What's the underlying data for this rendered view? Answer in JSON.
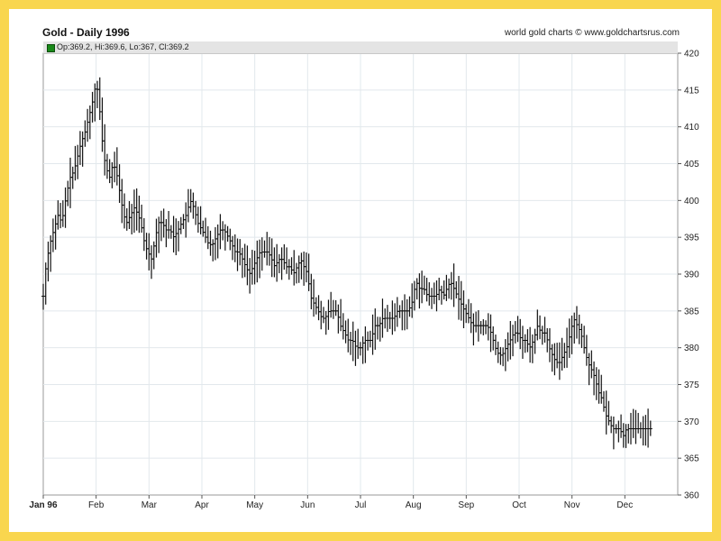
{
  "title": "Gold - Daily 1996",
  "source": "world gold charts © www.goldchartsrus.com",
  "ohlc_readout": "Op:369.2, Hi:369.6, Lo:367, Cl:369.2",
  "colors": {
    "frame": "#f9d64e",
    "bars": "#111111",
    "grid": "#e2e8ec",
    "swatch": "#1a8a1a"
  },
  "chart_data": {
    "type": "ohlc",
    "title": "Gold - Daily 1996",
    "ylim": [
      360,
      420
    ],
    "y_ticks": [
      360,
      365,
      370,
      375,
      380,
      385,
      390,
      395,
      400,
      405,
      410,
      415,
      420
    ],
    "x_range": [
      0,
      12
    ],
    "x_ticks": [
      {
        "label": "Jan 96",
        "x": 0
      },
      {
        "label": "Feb",
        "x": 1
      },
      {
        "label": "Mar",
        "x": 2
      },
      {
        "label": "Apr",
        "x": 3
      },
      {
        "label": "May",
        "x": 4
      },
      {
        "label": "Jun",
        "x": 5
      },
      {
        "label": "Jul",
        "x": 6
      },
      {
        "label": "Aug",
        "x": 7
      },
      {
        "label": "Sep",
        "x": 8
      },
      {
        "label": "Oct",
        "x": 9
      },
      {
        "label": "Nov",
        "x": 10
      },
      {
        "label": "Dec",
        "x": 11
      }
    ],
    "grid": true,
    "close_path": [
      [
        0.0,
        387
      ],
      [
        0.05,
        391
      ],
      [
        0.12,
        394
      ],
      [
        0.2,
        396
      ],
      [
        0.28,
        398
      ],
      [
        0.35,
        397
      ],
      [
        0.42,
        400
      ],
      [
        0.5,
        403
      ],
      [
        0.58,
        404
      ],
      [
        0.65,
        406
      ],
      [
        0.72,
        408
      ],
      [
        0.78,
        409
      ],
      [
        0.85,
        411
      ],
      [
        0.92,
        413
      ],
      [
        1.0,
        416
      ],
      [
        1.05,
        414
      ],
      [
        1.1,
        409
      ],
      [
        1.17,
        405
      ],
      [
        1.25,
        403
      ],
      [
        1.32,
        405
      ],
      [
        1.38,
        404
      ],
      [
        1.45,
        401
      ],
      [
        1.52,
        398
      ],
      [
        1.58,
        397
      ],
      [
        1.65,
        398
      ],
      [
        1.72,
        399
      ],
      [
        1.8,
        398
      ],
      [
        1.87,
        396
      ],
      [
        1.92,
        394
      ],
      [
        1.98,
        393
      ],
      [
        2.05,
        392
      ],
      [
        2.12,
        395
      ],
      [
        2.18,
        397
      ],
      [
        2.25,
        397
      ],
      [
        2.32,
        396
      ],
      [
        2.4,
        396
      ],
      [
        2.47,
        395
      ],
      [
        2.55,
        396
      ],
      [
        2.62,
        397
      ],
      [
        2.7,
        398
      ],
      [
        2.78,
        400
      ],
      [
        2.85,
        399
      ],
      [
        2.92,
        397
      ],
      [
        3.0,
        396
      ],
      [
        3.07,
        395
      ],
      [
        3.13,
        394
      ],
      [
        3.2,
        394
      ],
      [
        3.27,
        395
      ],
      [
        3.35,
        396
      ],
      [
        3.42,
        396
      ],
      [
        3.5,
        395
      ],
      [
        3.57,
        394
      ],
      [
        3.63,
        393
      ],
      [
        3.7,
        393
      ],
      [
        3.77,
        392
      ],
      [
        3.83,
        391
      ],
      [
        3.9,
        390
      ],
      [
        3.97,
        391
      ],
      [
        4.03,
        392
      ],
      [
        4.1,
        393
      ],
      [
        4.17,
        393
      ],
      [
        4.25,
        393
      ],
      [
        4.32,
        392
      ],
      [
        4.38,
        391
      ],
      [
        4.45,
        392
      ],
      [
        4.52,
        392
      ],
      [
        4.6,
        391
      ],
      [
        4.67,
        391
      ],
      [
        4.73,
        390
      ],
      [
        4.8,
        391
      ],
      [
        4.87,
        392
      ],
      [
        4.93,
        391
      ],
      [
        5.0,
        390
      ],
      [
        5.05,
        387
      ],
      [
        5.12,
        386
      ],
      [
        5.2,
        385
      ],
      [
        5.27,
        384
      ],
      [
        5.33,
        384
      ],
      [
        5.4,
        385
      ],
      [
        5.48,
        385
      ],
      [
        5.55,
        385
      ],
      [
        5.62,
        383
      ],
      [
        5.7,
        382
      ],
      [
        5.77,
        381
      ],
      [
        5.85,
        381
      ],
      [
        5.92,
        380
      ],
      [
        6.0,
        380
      ],
      [
        6.07,
        381
      ],
      [
        6.13,
        381
      ],
      [
        6.2,
        381
      ],
      [
        6.27,
        383
      ],
      [
        6.35,
        383
      ],
      [
        6.42,
        384
      ],
      [
        6.5,
        384
      ],
      [
        6.57,
        384
      ],
      [
        6.63,
        384
      ],
      [
        6.7,
        385
      ],
      [
        6.77,
        385
      ],
      [
        6.83,
        385
      ],
      [
        6.9,
        385
      ],
      [
        6.97,
        386
      ],
      [
        7.05,
        389
      ],
      [
        7.12,
        388
      ],
      [
        7.2,
        388
      ],
      [
        7.27,
        387
      ],
      [
        7.35,
        387
      ],
      [
        7.42,
        387
      ],
      [
        7.5,
        388
      ],
      [
        7.57,
        387
      ],
      [
        7.63,
        388
      ],
      [
        7.7,
        389
      ],
      [
        7.77,
        388
      ],
      [
        7.83,
        387
      ],
      [
        7.9,
        386
      ],
      [
        7.97,
        385
      ],
      [
        8.05,
        384
      ],
      [
        8.12,
        383
      ],
      [
        8.2,
        383
      ],
      [
        8.27,
        383
      ],
      [
        8.33,
        383
      ],
      [
        8.4,
        383
      ],
      [
        8.47,
        382
      ],
      [
        8.55,
        380
      ],
      [
        8.62,
        379
      ],
      [
        8.68,
        379
      ],
      [
        8.75,
        380
      ],
      [
        8.83,
        381
      ],
      [
        8.9,
        382
      ],
      [
        8.97,
        382
      ],
      [
        9.05,
        381
      ],
      [
        9.12,
        381
      ],
      [
        9.2,
        380
      ],
      [
        9.27,
        381
      ],
      [
        9.35,
        383
      ],
      [
        9.42,
        382
      ],
      [
        9.5,
        382
      ],
      [
        9.57,
        380
      ],
      [
        9.63,
        379
      ],
      [
        9.7,
        378
      ],
      [
        9.77,
        378
      ],
      [
        9.83,
        379
      ],
      [
        9.9,
        380
      ],
      [
        9.97,
        382
      ],
      [
        10.03,
        384
      ],
      [
        10.1,
        383
      ],
      [
        10.17,
        382
      ],
      [
        10.23,
        380
      ],
      [
        10.3,
        378
      ],
      [
        10.37,
        377
      ],
      [
        10.43,
        376
      ],
      [
        10.5,
        374
      ],
      [
        10.57,
        373
      ],
      [
        10.63,
        371
      ],
      [
        10.7,
        370
      ],
      [
        10.77,
        369
      ],
      [
        10.83,
        369
      ],
      [
        10.9,
        369
      ],
      [
        10.97,
        368
      ],
      [
        11.03,
        369
      ],
      [
        11.1,
        369
      ],
      [
        11.17,
        369
      ],
      [
        11.23,
        369
      ],
      [
        11.3,
        369
      ],
      [
        11.37,
        369
      ],
      [
        11.43,
        369
      ],
      [
        11.5,
        369
      ]
    ]
  }
}
